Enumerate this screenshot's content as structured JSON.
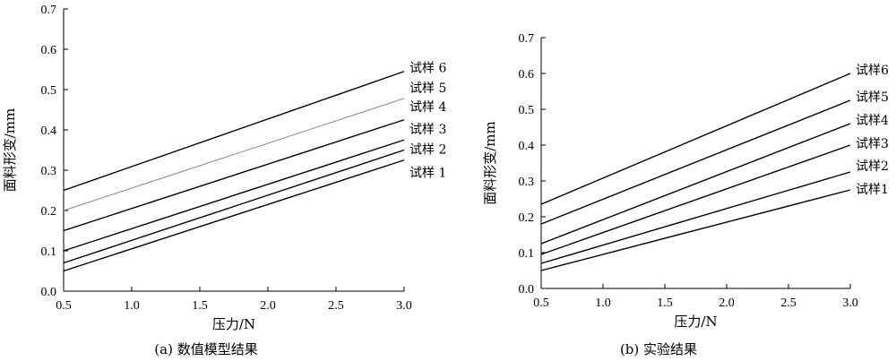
{
  "chart_data": [
    {
      "type": "line",
      "caption": "(a) 数值模型结果",
      "xlabel": "压力/N",
      "ylabel": "面料形变/mm",
      "xlim": [
        0.5,
        3.0
      ],
      "ylim": [
        0.0,
        0.7
      ],
      "xticks": [
        "0.5",
        "1.0",
        "1.5",
        "2.0",
        "2.5",
        "3.0"
      ],
      "yticks": [
        "0.0",
        "0.1",
        "0.2",
        "0.3",
        "0.4",
        "0.5",
        "0.6",
        "0.7"
      ],
      "series": [
        {
          "name": "试样 6",
          "x": [
            0.5,
            3.0
          ],
          "values": [
            0.25,
            0.545
          ],
          "color": "#000000"
        },
        {
          "name": "试样 5",
          "x": [
            0.5,
            3.0
          ],
          "values": [
            0.2,
            0.478
          ],
          "color": "#888888"
        },
        {
          "name": "试样 4",
          "x": [
            0.5,
            3.0
          ],
          "values": [
            0.15,
            0.425
          ],
          "color": "#000000"
        },
        {
          "name": "试样 3",
          "x": [
            0.5,
            3.0
          ],
          "values": [
            0.1,
            0.375
          ],
          "color": "#000000"
        },
        {
          "name": "试样 2",
          "x": [
            0.5,
            3.0
          ],
          "values": [
            0.07,
            0.35
          ],
          "color": "#000000"
        },
        {
          "name": "试样 1",
          "x": [
            0.5,
            3.0
          ],
          "values": [
            0.05,
            0.325
          ],
          "color": "#000000"
        }
      ],
      "labels": [
        {
          "text": "试样 6",
          "y": 0.555
        },
        {
          "text": "试样 5",
          "y": 0.505
        },
        {
          "text": "试样 4",
          "y": 0.458
        },
        {
          "text": "试样 3",
          "y": 0.402
        },
        {
          "text": "试样 2",
          "y": 0.352
        },
        {
          "text": "试样 1",
          "y": 0.295
        }
      ]
    },
    {
      "type": "line",
      "caption": "(b) 实验结果",
      "xlabel": "压力/N",
      "ylabel": "面料形变/mm",
      "xlim": [
        0.5,
        3.0
      ],
      "ylim": [
        0.0,
        0.7
      ],
      "xticks": [
        "0.5",
        "1.0",
        "1.5",
        "2.0",
        "2.5",
        "3.0"
      ],
      "yticks": [
        "0.0",
        "0.1",
        "0.2",
        "0.3",
        "0.4",
        "0.5",
        "0.6",
        "0.7"
      ],
      "series": [
        {
          "name": "试样6",
          "x": [
            0.5,
            3.0
          ],
          "values": [
            0.235,
            0.6
          ],
          "color": "#000000"
        },
        {
          "name": "试样5",
          "x": [
            0.5,
            3.0
          ],
          "values": [
            0.18,
            0.525
          ],
          "color": "#000000"
        },
        {
          "name": "试样4",
          "x": [
            0.5,
            3.0
          ],
          "values": [
            0.125,
            0.46
          ],
          "color": "#000000"
        },
        {
          "name": "试样3",
          "x": [
            0.5,
            3.0
          ],
          "values": [
            0.095,
            0.4
          ],
          "color": "#000000"
        },
        {
          "name": "试样2",
          "x": [
            0.5,
            3.0
          ],
          "values": [
            0.07,
            0.325
          ],
          "color": "#000000"
        },
        {
          "name": "试样1",
          "x": [
            0.5,
            3.0
          ],
          "values": [
            0.05,
            0.275
          ],
          "color": "#000000"
        }
      ],
      "labels": [
        {
          "text": "试样6",
          "y": 0.61
        },
        {
          "text": "试样5",
          "y": 0.535
        },
        {
          "text": "试样4",
          "y": 0.47
        },
        {
          "text": "试样3",
          "y": 0.405
        },
        {
          "text": "试样2",
          "y": 0.342
        },
        {
          "text": "试样1",
          "y": 0.278
        }
      ]
    }
  ]
}
